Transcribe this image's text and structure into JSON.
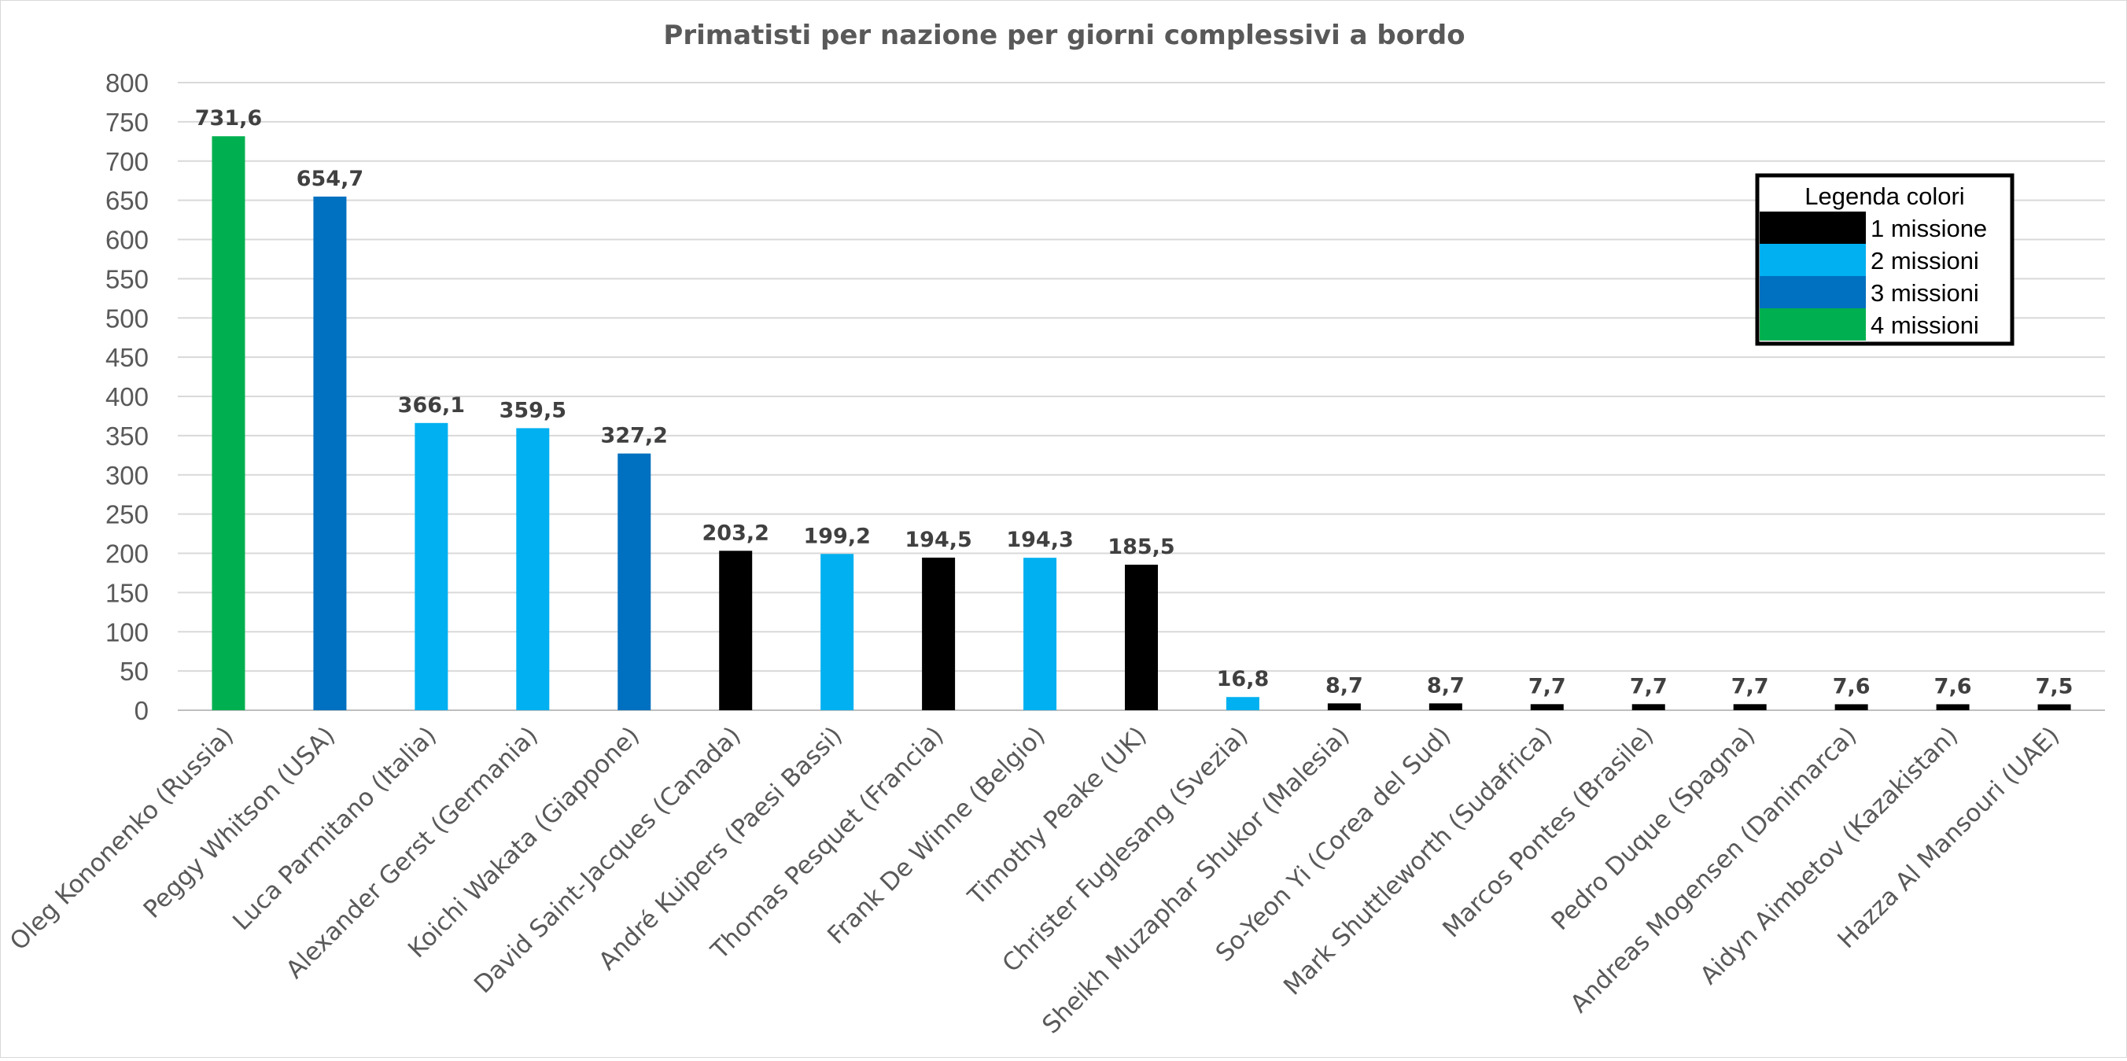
{
  "chart_data": {
    "type": "bar",
    "title": "Primatisti per nazione per giorni complessivi a bordo",
    "xlabel": "",
    "ylabel": "",
    "ylim": [
      0,
      800
    ],
    "yticks": [
      0,
      50,
      100,
      150,
      200,
      250,
      300,
      350,
      400,
      450,
      500,
      550,
      600,
      650,
      700,
      750,
      800
    ],
    "grid": true,
    "categories": [
      "Oleg Kononenko (Russia)",
      "Peggy Whitson (USA)",
      "Luca Parmitano (Italia)",
      "Alexander Gerst (Germania)",
      "Koichi Wakata (Giappone)",
      "David Saint-Jacques (Canada)",
      "André Kuipers (Paesi Bassi)",
      "Thomas Pesquet (Francia)",
      "Frank De Winne (Belgio)",
      "Timothy Peake (UK)",
      "Christer Fuglesang (Svezia)",
      "Sheikh Muzaphar Shukor (Malesia)",
      "So-Yeon Yi (Corea del Sud)",
      "Mark Shuttleworth (Sudafrica)",
      "Marcos Pontes (Brasile)",
      "Pedro Duque (Spagna)",
      "Andreas Mogensen (Danimarca)",
      "Aidyn Aimbetov (Kazakistan)",
      "Hazza Al Mansouri (UAE)"
    ],
    "values": [
      731.6,
      654.7,
      366.1,
      359.5,
      327.2,
      203.2,
      199.2,
      194.5,
      194.3,
      185.5,
      16.8,
      8.7,
      8.7,
      7.7,
      7.7,
      7.7,
      7.6,
      7.6,
      7.5
    ],
    "data_labels": [
      "731,6",
      "654,7",
      "366,1",
      "359,5",
      "327,2",
      "203,2",
      "199,2",
      "194,5",
      "194,3",
      "185,5",
      "16,8",
      "8,7",
      "8,7",
      "7,7",
      "7,7",
      "7,7",
      "7,6",
      "7,6",
      "7,5"
    ],
    "missions": [
      4,
      3,
      2,
      2,
      3,
      1,
      2,
      1,
      2,
      1,
      2,
      1,
      1,
      1,
      1,
      1,
      1,
      1,
      1
    ],
    "mission_colors": {
      "1": "#000000",
      "2": "#00b0f0",
      "3": "#0070c0",
      "4": "#00b050"
    },
    "legend": {
      "title": "Legenda colori",
      "placement": "top-right",
      "entries": [
        {
          "label": "1 missione",
          "color": "#000000"
        },
        {
          "label": "2 missioni",
          "color": "#00b0f0"
        },
        {
          "label": "3 missioni",
          "color": "#0070c0"
        },
        {
          "label": "4 missioni",
          "color": "#00b050"
        }
      ]
    }
  }
}
